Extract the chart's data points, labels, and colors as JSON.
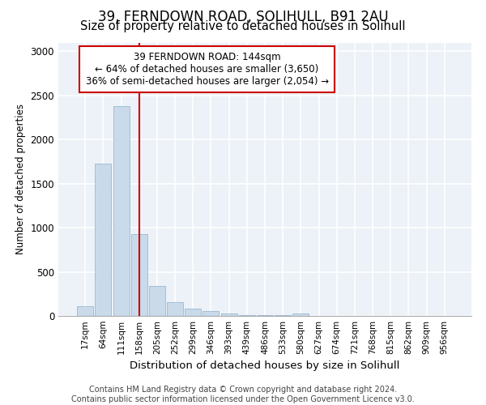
{
  "title": "39, FERNDOWN ROAD, SOLIHULL, B91 2AU",
  "subtitle": "Size of property relative to detached houses in Solihull",
  "xlabel": "Distribution of detached houses by size in Solihull",
  "ylabel": "Number of detached properties",
  "bar_color": "#c9daea",
  "bar_edge_color": "#8ab0cc",
  "bar_edge_width": 0.5,
  "annotation_box_color": "#cc0000",
  "vline_color": "#cc0000",
  "vline_x_index": 3,
  "annotation_text": "39 FERNDOWN ROAD: 144sqm\n← 64% of detached houses are smaller (3,650)\n36% of semi-detached houses are larger (2,054) →",
  "categories": [
    "17sqm",
    "64sqm",
    "111sqm",
    "158sqm",
    "205sqm",
    "252sqm",
    "299sqm",
    "346sqm",
    "393sqm",
    "439sqm",
    "486sqm",
    "533sqm",
    "580sqm",
    "627sqm",
    "674sqm",
    "721sqm",
    "768sqm",
    "815sqm",
    "862sqm",
    "909sqm",
    "956sqm"
  ],
  "values": [
    110,
    1725,
    2375,
    930,
    340,
    155,
    80,
    55,
    30,
    5,
    5,
    5,
    30,
    0,
    0,
    0,
    0,
    0,
    0,
    0,
    0
  ],
  "ylim": [
    0,
    3100
  ],
  "yticks": [
    0,
    500,
    1000,
    1500,
    2000,
    2500,
    3000
  ],
  "background_color": "#edf2f8",
  "grid_color": "#ffffff",
  "footer": "Contains HM Land Registry data © Crown copyright and database right 2024.\nContains public sector information licensed under the Open Government Licence v3.0.",
  "title_fontsize": 12,
  "subtitle_fontsize": 10.5,
  "xlabel_fontsize": 9.5,
  "ylabel_fontsize": 8.5,
  "footer_fontsize": 7
}
